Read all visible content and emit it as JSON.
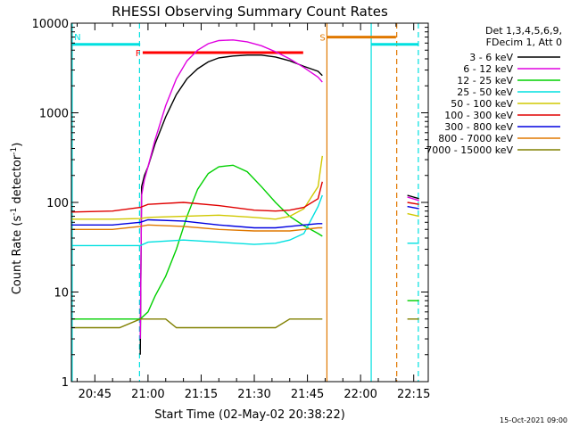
{
  "chart_data": {
    "type": "line",
    "title": "RHESSI Observing Summary Count Rates",
    "xlabel": "Start Time (02-May-02 20:38:22)",
    "ylabel_prefix": "Count Rate (s",
    "ylabel_sup": "-1",
    "ylabel_suffix": " detector",
    "ylabel_end": ")",
    "timestamp": "15-Oct-2021 09:00",
    "legend_header": [
      "Det 1,3,4,5,6,9,",
      "FDecim 1, Att 0"
    ],
    "x_range_min": [
      38.37,
      81.5
    ],
    "y_range": [
      1,
      10000
    ],
    "y_scale": "log",
    "y_ticks": [
      {
        "v": 1,
        "label": "1"
      },
      {
        "v": 10,
        "label": "10"
      },
      {
        "v": 100,
        "label": "100"
      },
      {
        "v": 1000,
        "label": "1000"
      },
      {
        "v": 10000,
        "label": "10000"
      }
    ],
    "x_ticks": [
      {
        "v": 45,
        "label": "20:45"
      },
      {
        "v": 60,
        "label": "21:00"
      },
      {
        "v": 75,
        "label": "21:15"
      },
      {
        "v": 90,
        "label": "21:30"
      },
      {
        "v": 105,
        "label": "21:45"
      },
      {
        "v": 120,
        "label": "22:00"
      },
      {
        "v": 135,
        "label": "22:15"
      }
    ],
    "series": [
      {
        "name": "3 - 6 keV",
        "color": "#000000",
        "x": [
          57.8,
          58.2,
          59,
          60,
          62,
          65,
          68,
          71,
          74,
          77,
          80,
          84,
          88,
          92,
          96,
          100,
          104,
          108,
          109.2
        ],
        "y": [
          2,
          150,
          200,
          250,
          450,
          900,
          1600,
          2400,
          3100,
          3700,
          4100,
          4300,
          4400,
          4400,
          4200,
          3800,
          3300,
          2900,
          2600
        ]
      },
      {
        "name": "6 - 12 keV",
        "color": "#e000e0",
        "x": [
          57.8,
          58.2,
          59,
          60,
          62,
          65,
          68,
          71,
          74,
          77,
          80,
          84,
          88,
          92,
          96,
          100,
          104,
          108,
          109.2
        ],
        "y": [
          3,
          120,
          180,
          250,
          500,
          1200,
          2400,
          3800,
          5000,
          5900,
          6400,
          6500,
          6200,
          5600,
          4800,
          4000,
          3200,
          2500,
          2200
        ]
      },
      {
        "name": "12 - 25 keV",
        "color": "#00d000",
        "x": [
          38.4,
          45,
          52,
          57.8,
          60,
          62,
          65,
          68,
          71,
          74,
          77,
          80,
          84,
          88,
          92,
          96,
          100,
          104,
          108,
          109.2
        ],
        "y": [
          5,
          5,
          5,
          5,
          6,
          9,
          15,
          30,
          70,
          140,
          210,
          250,
          260,
          220,
          150,
          100,
          70,
          55,
          45,
          42
        ]
      },
      {
        "name": "25 - 50 keV",
        "color": "#00e0e0",
        "x": [
          38.4,
          50,
          57.8,
          60,
          70,
          80,
          90,
          96,
          100,
          104,
          108,
          109.2
        ],
        "y": [
          33,
          33,
          33,
          36,
          38,
          36,
          34,
          35,
          38,
          45,
          90,
          120
        ]
      },
      {
        "name": "50 - 100 keV",
        "color": "#d0c800",
        "x": [
          38.4,
          50,
          57.8,
          60,
          70,
          80,
          90,
          96,
          100,
          104,
          108,
          109.2
        ],
        "y": [
          65,
          65,
          66,
          68,
          70,
          72,
          68,
          65,
          70,
          85,
          150,
          330
        ]
      },
      {
        "name": "100 - 300 keV",
        "color": "#e00000",
        "x": [
          38.4,
          50,
          57.8,
          60,
          70,
          80,
          90,
          96,
          100,
          104,
          108,
          109.2
        ],
        "y": [
          78,
          80,
          88,
          95,
          100,
          92,
          82,
          80,
          82,
          88,
          110,
          170
        ]
      },
      {
        "name": "300 - 800 keV",
        "color": "#0000e0",
        "x": [
          38.4,
          50,
          57.8,
          60,
          70,
          80,
          90,
          96,
          100,
          104,
          108,
          109.2
        ],
        "y": [
          56,
          56,
          60,
          64,
          62,
          56,
          52,
          52,
          54,
          56,
          58,
          58
        ]
      },
      {
        "name": "800 - 7000 keV",
        "color": "#e07800",
        "x": [
          38.4,
          50,
          57.8,
          60,
          70,
          80,
          90,
          96,
          100,
          104,
          108,
          109.2
        ],
        "y": [
          50,
          50,
          54,
          56,
          54,
          50,
          48,
          48,
          48,
          50,
          52,
          52
        ]
      },
      {
        "name": "7000 - 15000 keV",
        "color": "#808000",
        "x": [
          38.4,
          45,
          52,
          57.8,
          60,
          62,
          65,
          68,
          71,
          74,
          77,
          80,
          84,
          88,
          92,
          96,
          100,
          104,
          108,
          109.2
        ],
        "y": [
          4,
          4,
          4,
          5,
          5,
          5,
          5,
          4,
          4,
          4,
          4,
          4,
          4,
          4,
          4,
          4,
          5,
          5,
          5,
          5
        ]
      }
    ],
    "series_post_gap": [
      {
        "name": "3 - 6 keV",
        "color": "#000000",
        "x": [
          133.2,
          136.5
        ],
        "y": [
          120,
          110
        ]
      },
      {
        "name": "6 - 12 keV",
        "color": "#e000e0",
        "x": [
          133.2,
          136.5
        ],
        "y": [
          115,
          105
        ]
      },
      {
        "name": "12 - 25 keV",
        "color": "#00d000",
        "x": [
          133.2,
          136.5
        ],
        "y": [
          8,
          8
        ]
      },
      {
        "name": "25 - 50 keV",
        "color": "#00e0e0",
        "x": [
          133.2,
          136.5
        ],
        "y": [
          35,
          35
        ]
      },
      {
        "name": "50 - 100 keV",
        "color": "#d0c800",
        "x": [
          133.2,
          136.5
        ],
        "y": [
          75,
          70
        ]
      },
      {
        "name": "100 - 300 keV",
        "color": "#e00000",
        "x": [
          133.2,
          136.5
        ],
        "y": [
          100,
          95
        ]
      },
      {
        "name": "300 - 800 keV",
        "color": "#0000e0",
        "x": [
          133.2,
          136.5
        ],
        "y": [
          90,
          85
        ]
      },
      {
        "name": "7000 - 15000 keV",
        "color": "#808000",
        "x": [
          133.2,
          136.5
        ],
        "y": [
          5,
          5
        ]
      }
    ],
    "annotations": [
      {
        "label": "F",
        "color": "#ff0000",
        "x0": 58.5,
        "x1": 103.8,
        "y": 4700,
        "kind": "bar"
      },
      {
        "label": "N",
        "color": "#00e0e0",
        "x0": 38.4,
        "x1": 57.8,
        "y": 5800,
        "kind": "bar"
      },
      {
        "label": "S",
        "color": "#e07800",
        "x0": 110.5,
        "x1": 130,
        "y": 7000,
        "kind": "bar"
      },
      {
        "label": "",
        "color": "#00e0e0",
        "x0": 123,
        "x1": 136.3,
        "y": 5800,
        "kind": "bar"
      }
    ],
    "vlines": [
      {
        "x": 38.6,
        "color": "#00e0e0",
        "dash": false
      },
      {
        "x": 57.6,
        "color": "#00e0e0",
        "dash": true
      },
      {
        "x": 110.5,
        "color": "#e07800",
        "dash": false
      },
      {
        "x": 123,
        "color": "#00e0e0",
        "dash": false
      },
      {
        "x": 130.2,
        "color": "#e07800",
        "dash": true
      },
      {
        "x": 136.3,
        "color": "#00e0e0",
        "dash": true
      }
    ],
    "grid": false,
    "legend_position": "right"
  }
}
